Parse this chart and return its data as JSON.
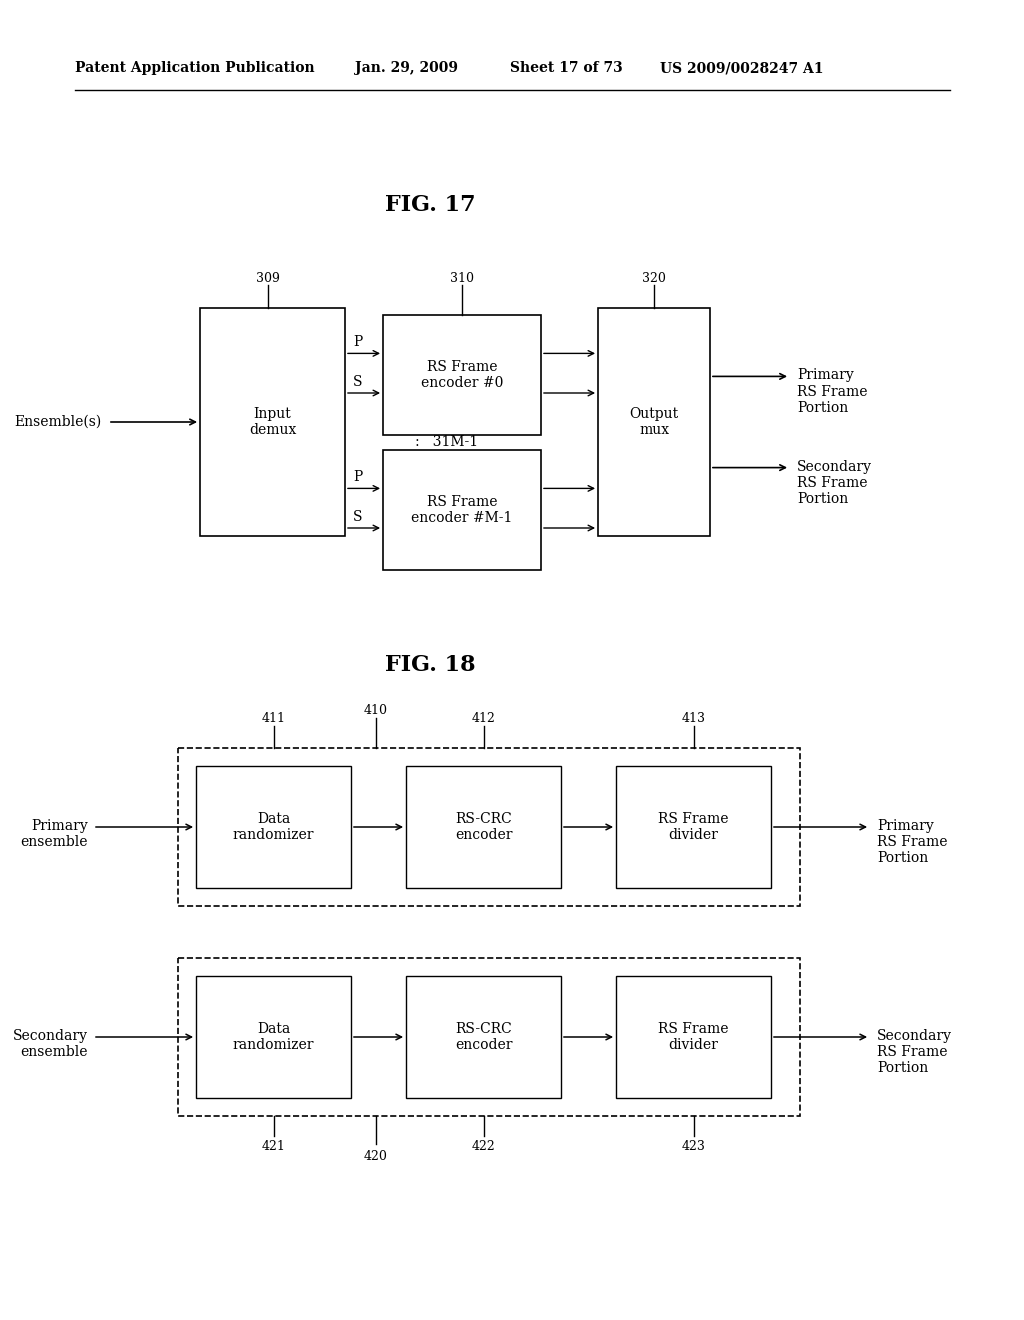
{
  "bg_color": "#ffffff",
  "header_text": "Patent Application Publication",
  "header_date": "Jan. 29, 2009",
  "header_sheet": "Sheet 17 of 73",
  "header_patent": "US 2009/0028247 A1",
  "fig17_title": "FIG. 17",
  "fig18_title": "FIG. 18",
  "font_family": "DejaVu Serif"
}
